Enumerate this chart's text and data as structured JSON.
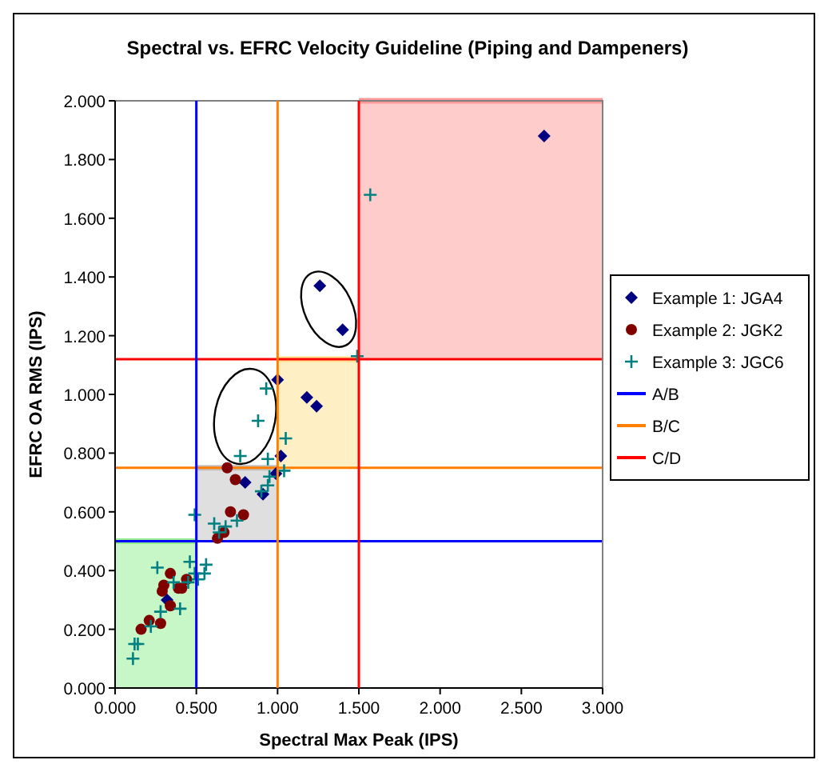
{
  "chart_data": {
    "type": "scatter",
    "title": "Spectral vs. EFRC Velocity Guideline (Piping and Dampeners)",
    "xlabel": "Spectral Max Peak  (IPS)",
    "ylabel": "EFRC OA RMS (IPS)",
    "xlim": [
      0,
      3
    ],
    "ylim": [
      0,
      2
    ],
    "xticks": [
      {
        "value": 0,
        "label": "0.000"
      },
      {
        "value": 0.5,
        "label": "0.500"
      },
      {
        "value": 1,
        "label": "1.000"
      },
      {
        "value": 1.5,
        "label": "1.500"
      },
      {
        "value": 2,
        "label": "2.000"
      },
      {
        "value": 2.5,
        "label": "2.500"
      },
      {
        "value": 3,
        "label": "3.000"
      }
    ],
    "yticks": [
      {
        "value": 0,
        "label": "0.000"
      },
      {
        "value": 0.2,
        "label": "0.200"
      },
      {
        "value": 0.4,
        "label": "0.400"
      },
      {
        "value": 0.6,
        "label": "0.600"
      },
      {
        "value": 0.8,
        "label": "0.800"
      },
      {
        "value": 1,
        "label": "1.000"
      },
      {
        "value": 1.2,
        "label": "1.200"
      },
      {
        "value": 1.4,
        "label": "1.400"
      },
      {
        "value": 1.6,
        "label": "1.600"
      },
      {
        "value": 1.8,
        "label": "1.800"
      },
      {
        "value": 2,
        "label": "2.000"
      }
    ],
    "grid": false,
    "legend": "right",
    "series": [
      {
        "type": "line",
        "color": "#90ee90",
        "x": [
          0,
          0.5
        ],
        "values": [
          0.5,
          0.5
        ],
        "lower": [
          0,
          0
        ],
        "upper": [
          0.5,
          0.5
        ]
      },
      {
        "type": "line",
        "color": "#c0c0c0",
        "x": [
          0.5,
          1
        ],
        "values": [
          0.75,
          0.75
        ],
        "lower": [
          0.5,
          0.5
        ],
        "upper": [
          0.75,
          0.75
        ]
      },
      {
        "type": "line",
        "color": "#ffe08c",
        "x": [
          1,
          1.5
        ],
        "values": [
          1.12,
          1.12
        ],
        "lower": [
          0.75,
          0.75
        ],
        "upper": [
          1.12,
          1.12
        ]
      },
      {
        "type": "line",
        "color": "#ff9999",
        "x": [
          1.5,
          3
        ],
        "values": [
          2,
          2
        ],
        "lower": [
          1.12,
          1.12
        ],
        "upper": [
          2,
          2
        ]
      },
      {
        "name": "Example 1: JGA4",
        "color": "#000080",
        "marker": "diamond",
        "x": [
          1.26,
          1.4,
          1.0,
          1.18,
          1.24,
          1.02,
          0.99,
          0.8,
          0.91,
          2.64,
          0.32
        ],
        "values": [
          1.37,
          1.22,
          1.05,
          0.99,
          0.96,
          0.79,
          0.73,
          0.7,
          0.66,
          1.88,
          0.3
        ]
      },
      {
        "name": "Example 2: JGK2",
        "color": "#800000",
        "marker": "circle",
        "x": [
          0.69,
          0.74,
          0.71,
          0.79,
          0.67,
          0.63,
          0.34,
          0.44,
          0.3,
          0.29,
          0.39,
          0.41,
          0.34,
          0.21,
          0.28,
          0.16
        ],
        "values": [
          0.75,
          0.71,
          0.6,
          0.59,
          0.53,
          0.51,
          0.39,
          0.37,
          0.35,
          0.33,
          0.34,
          0.34,
          0.28,
          0.23,
          0.22,
          0.2
        ]
      },
      {
        "name": "Example 3: JGC6",
        "color": "#008080",
        "marker": "cross",
        "x": [
          0.93,
          0.88,
          0.77,
          1.05,
          0.94,
          1.04,
          0.95,
          0.94,
          0.9,
          1.49,
          1.57,
          0.49,
          0.61,
          0.68,
          0.75,
          0.64,
          0.26,
          0.46,
          0.56,
          0.49,
          0.55,
          0.51,
          0.36,
          0.45,
          0.4,
          0.28,
          0.22,
          0.14,
          0.12,
          0.11
        ],
        "values": [
          1.02,
          0.91,
          0.79,
          0.85,
          0.78,
          0.74,
          0.72,
          0.69,
          0.67,
          1.13,
          1.68,
          0.59,
          0.56,
          0.55,
          0.57,
          0.53,
          0.41,
          0.43,
          0.42,
          0.39,
          0.39,
          0.37,
          0.36,
          0.36,
          0.27,
          0.26,
          0.21,
          0.15,
          0.15,
          0.1
        ]
      },
      {
        "type": "line",
        "name": "A/B",
        "color": "#0000ff",
        "x": [
          0.5,
          0.5
        ],
        "values": [
          0,
          2
        ]
      },
      {
        "type": "line",
        "name": "B/C",
        "color": "#ff8000",
        "x": [
          1,
          1
        ],
        "values": [
          0,
          2
        ]
      },
      {
        "type": "line",
        "name": "C/D",
        "color": "#ff0000",
        "x": [
          1.5,
          1.5
        ],
        "values": [
          0,
          2
        ]
      }
    ],
    "ref_lines": [
      {
        "axis": "y",
        "value": 0.5,
        "color": "#0000ff"
      },
      {
        "axis": "y",
        "value": 0.75,
        "color": "#ff8000"
      },
      {
        "axis": "y",
        "value": 1.12,
        "color": "#ff0000"
      }
    ]
  }
}
